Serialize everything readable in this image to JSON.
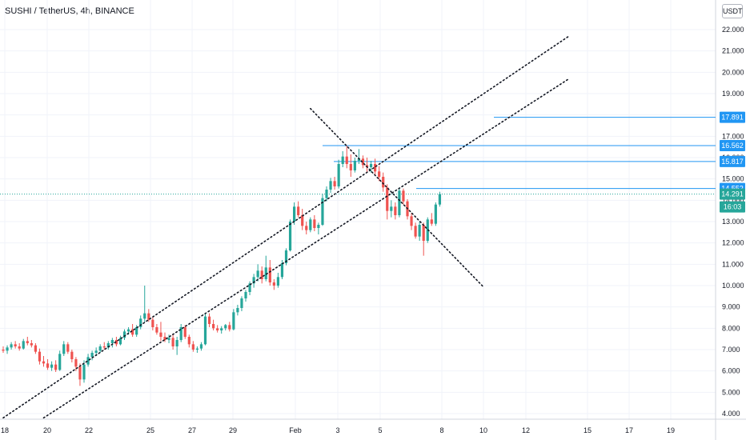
{
  "header": {
    "symbol_title": "SUSHI / TetherUS, 4h, BINANCE",
    "currency": "USDT"
  },
  "chart_data": {
    "type": "candlestick",
    "y_ticks": [
      "4.000",
      "5.000",
      "6.000",
      "7.000",
      "8.000",
      "9.000",
      "10.000",
      "11.000",
      "12.000",
      "13.000",
      "14.000",
      "15.000",
      "16.000",
      "17.000",
      "18.000",
      "19.000",
      "20.000",
      "21.000",
      "22.000"
    ],
    "ylim": [
      3.7,
      22.6
    ],
    "x_ticks": [
      "18",
      "20",
      "22",
      "25",
      "27",
      "29",
      "Feb",
      "3",
      "5",
      "8",
      "10",
      "12",
      "15",
      "17",
      "19"
    ],
    "horizontal_levels": [
      {
        "value": 17.891,
        "label": "17.891",
        "color": "#2196f3"
      },
      {
        "value": 16.562,
        "label": "16.562",
        "color": "#2196f3"
      },
      {
        "value": 15.817,
        "label": "15.817",
        "color": "#2196f3"
      },
      {
        "value": 14.552,
        "label": "14.552",
        "color": "#2196f3"
      }
    ],
    "current_price": {
      "value": 14.291,
      "label": "14.291",
      "countdown": "16:03",
      "color": "#26a69a"
    },
    "trendlines": [
      {
        "style": "dotted",
        "from": [
          0,
          3.8
        ],
        "to": [
          140,
          21.7
        ]
      },
      {
        "style": "dotted",
        "from": [
          10,
          3.8
        ],
        "to": [
          140,
          19.7
        ]
      },
      {
        "style": "dotted",
        "from": [
          76,
          18.3
        ],
        "to": [
          119,
          9.9
        ]
      }
    ],
    "candles": [
      {
        "o": 7.0,
        "h": 7.15,
        "l": 6.85,
        "c": 6.95
      },
      {
        "o": 6.95,
        "h": 7.2,
        "l": 6.8,
        "c": 7.1
      },
      {
        "o": 7.1,
        "h": 7.35,
        "l": 7.0,
        "c": 7.25
      },
      {
        "o": 7.25,
        "h": 7.4,
        "l": 7.05,
        "c": 7.15
      },
      {
        "o": 7.15,
        "h": 7.3,
        "l": 6.95,
        "c": 7.05
      },
      {
        "o": 7.05,
        "h": 7.5,
        "l": 7.0,
        "c": 7.4
      },
      {
        "o": 7.4,
        "h": 7.6,
        "l": 7.2,
        "c": 7.3
      },
      {
        "o": 7.3,
        "h": 7.45,
        "l": 7.1,
        "c": 7.2
      },
      {
        "o": 7.2,
        "h": 7.3,
        "l": 6.8,
        "c": 6.9
      },
      {
        "o": 6.9,
        "h": 7.05,
        "l": 6.3,
        "c": 6.45
      },
      {
        "o": 6.45,
        "h": 6.7,
        "l": 6.2,
        "c": 6.35
      },
      {
        "o": 6.35,
        "h": 6.55,
        "l": 6.05,
        "c": 6.15
      },
      {
        "o": 6.15,
        "h": 6.45,
        "l": 6.0,
        "c": 6.3
      },
      {
        "o": 6.3,
        "h": 6.5,
        "l": 5.95,
        "c": 6.05
      },
      {
        "o": 6.05,
        "h": 6.95,
        "l": 6.0,
        "c": 6.8
      },
      {
        "o": 6.8,
        "h": 7.4,
        "l": 6.7,
        "c": 7.25
      },
      {
        "o": 7.25,
        "h": 7.35,
        "l": 6.8,
        "c": 6.9
      },
      {
        "o": 6.9,
        "h": 7.0,
        "l": 6.4,
        "c": 6.55
      },
      {
        "o": 6.55,
        "h": 6.65,
        "l": 6.0,
        "c": 6.2
      },
      {
        "o": 6.2,
        "h": 6.35,
        "l": 5.3,
        "c": 5.6
      },
      {
        "o": 5.6,
        "h": 6.5,
        "l": 5.45,
        "c": 6.3
      },
      {
        "o": 6.3,
        "h": 6.8,
        "l": 6.2,
        "c": 6.65
      },
      {
        "o": 6.65,
        "h": 6.95,
        "l": 6.5,
        "c": 6.85
      },
      {
        "o": 6.85,
        "h": 7.1,
        "l": 6.7,
        "c": 6.95
      },
      {
        "o": 6.95,
        "h": 7.25,
        "l": 6.85,
        "c": 7.15
      },
      {
        "o": 7.15,
        "h": 7.35,
        "l": 7.0,
        "c": 7.1
      },
      {
        "o": 7.1,
        "h": 7.4,
        "l": 7.0,
        "c": 7.3
      },
      {
        "o": 7.3,
        "h": 7.55,
        "l": 7.1,
        "c": 7.45
      },
      {
        "o": 7.45,
        "h": 7.6,
        "l": 7.15,
        "c": 7.25
      },
      {
        "o": 7.25,
        "h": 7.65,
        "l": 7.2,
        "c": 7.55
      },
      {
        "o": 7.55,
        "h": 7.95,
        "l": 7.45,
        "c": 7.85
      },
      {
        "o": 7.85,
        "h": 8.05,
        "l": 7.7,
        "c": 7.95
      },
      {
        "o": 7.95,
        "h": 8.2,
        "l": 7.6,
        "c": 7.7
      },
      {
        "o": 7.7,
        "h": 8.15,
        "l": 7.6,
        "c": 8.05
      },
      {
        "o": 8.05,
        "h": 8.6,
        "l": 7.95,
        "c": 8.45
      },
      {
        "o": 8.45,
        "h": 10.0,
        "l": 8.3,
        "c": 8.7
      },
      {
        "o": 8.7,
        "h": 8.9,
        "l": 8.3,
        "c": 8.4
      },
      {
        "o": 8.4,
        "h": 8.55,
        "l": 7.9,
        "c": 8.05
      },
      {
        "o": 8.05,
        "h": 8.2,
        "l": 7.7,
        "c": 7.8
      },
      {
        "o": 7.8,
        "h": 8.3,
        "l": 7.4,
        "c": 7.6
      },
      {
        "o": 7.6,
        "h": 7.8,
        "l": 7.35,
        "c": 7.45
      },
      {
        "o": 7.45,
        "h": 7.7,
        "l": 7.3,
        "c": 7.55
      },
      {
        "o": 7.55,
        "h": 7.75,
        "l": 7.0,
        "c": 7.15
      },
      {
        "o": 7.15,
        "h": 7.6,
        "l": 6.75,
        "c": 7.45
      },
      {
        "o": 7.45,
        "h": 8.2,
        "l": 7.35,
        "c": 8.05
      },
      {
        "o": 8.05,
        "h": 8.15,
        "l": 7.5,
        "c": 7.6
      },
      {
        "o": 7.6,
        "h": 7.7,
        "l": 7.1,
        "c": 7.25
      },
      {
        "o": 7.25,
        "h": 7.4,
        "l": 6.9,
        "c": 7.0
      },
      {
        "o": 7.0,
        "h": 7.15,
        "l": 6.85,
        "c": 7.05
      },
      {
        "o": 7.05,
        "h": 7.35,
        "l": 6.95,
        "c": 7.25
      },
      {
        "o": 7.25,
        "h": 8.7,
        "l": 7.2,
        "c": 8.55
      },
      {
        "o": 8.55,
        "h": 8.7,
        "l": 8.05,
        "c": 8.2
      },
      {
        "o": 8.2,
        "h": 8.4,
        "l": 7.9,
        "c": 8.0
      },
      {
        "o": 8.0,
        "h": 8.15,
        "l": 7.8,
        "c": 7.9
      },
      {
        "o": 7.9,
        "h": 8.1,
        "l": 7.75,
        "c": 8.0
      },
      {
        "o": 8.0,
        "h": 8.2,
        "l": 7.9,
        "c": 8.15
      },
      {
        "o": 8.15,
        "h": 8.3,
        "l": 7.85,
        "c": 7.95
      },
      {
        "o": 7.95,
        "h": 8.9,
        "l": 7.9,
        "c": 8.75
      },
      {
        "o": 8.75,
        "h": 9.1,
        "l": 8.6,
        "c": 8.95
      },
      {
        "o": 8.95,
        "h": 9.5,
        "l": 8.8,
        "c": 9.4
      },
      {
        "o": 9.4,
        "h": 9.8,
        "l": 9.25,
        "c": 9.7
      },
      {
        "o": 9.7,
        "h": 10.2,
        "l": 9.55,
        "c": 10.1
      },
      {
        "o": 10.1,
        "h": 10.55,
        "l": 9.9,
        "c": 10.4
      },
      {
        "o": 10.4,
        "h": 11.0,
        "l": 10.2,
        "c": 10.7
      },
      {
        "o": 10.7,
        "h": 10.9,
        "l": 10.1,
        "c": 10.3
      },
      {
        "o": 10.3,
        "h": 11.4,
        "l": 10.2,
        "c": 10.85
      },
      {
        "o": 10.85,
        "h": 11.2,
        "l": 10.0,
        "c": 10.15
      },
      {
        "o": 10.15,
        "h": 10.3,
        "l": 9.8,
        "c": 10.0
      },
      {
        "o": 10.0,
        "h": 10.6,
        "l": 9.9,
        "c": 10.4
      },
      {
        "o": 10.4,
        "h": 11.2,
        "l": 10.3,
        "c": 11.05
      },
      {
        "o": 11.05,
        "h": 11.75,
        "l": 10.95,
        "c": 11.65
      },
      {
        "o": 11.65,
        "h": 13.1,
        "l": 11.6,
        "c": 13.0
      },
      {
        "o": 13.0,
        "h": 13.9,
        "l": 12.85,
        "c": 13.7
      },
      {
        "o": 13.7,
        "h": 13.95,
        "l": 13.2,
        "c": 13.3
      },
      {
        "o": 13.3,
        "h": 13.6,
        "l": 12.6,
        "c": 12.8
      },
      {
        "o": 12.8,
        "h": 13.0,
        "l": 12.4,
        "c": 12.6
      },
      {
        "o": 12.6,
        "h": 13.2,
        "l": 12.5,
        "c": 13.1
      },
      {
        "o": 13.1,
        "h": 13.3,
        "l": 12.55,
        "c": 12.7
      },
      {
        "o": 12.7,
        "h": 12.95,
        "l": 12.4,
        "c": 12.85
      },
      {
        "o": 12.85,
        "h": 14.3,
        "l": 12.8,
        "c": 14.1
      },
      {
        "o": 14.1,
        "h": 14.65,
        "l": 13.95,
        "c": 14.5
      },
      {
        "o": 14.5,
        "h": 15.05,
        "l": 14.35,
        "c": 14.9
      },
      {
        "o": 14.9,
        "h": 15.1,
        "l": 14.5,
        "c": 14.65
      },
      {
        "o": 14.65,
        "h": 15.9,
        "l": 14.55,
        "c": 15.7
      },
      {
        "o": 15.7,
        "h": 16.3,
        "l": 15.55,
        "c": 16.05
      },
      {
        "o": 16.05,
        "h": 16.55,
        "l": 15.5,
        "c": 15.7
      },
      {
        "o": 15.7,
        "h": 16.15,
        "l": 15.1,
        "c": 15.4
      },
      {
        "o": 15.4,
        "h": 16.0,
        "l": 15.3,
        "c": 15.85
      },
      {
        "o": 15.85,
        "h": 16.4,
        "l": 15.7,
        "c": 15.95
      },
      {
        "o": 15.95,
        "h": 16.1,
        "l": 15.5,
        "c": 15.65
      },
      {
        "o": 15.65,
        "h": 16.0,
        "l": 15.3,
        "c": 15.55
      },
      {
        "o": 15.55,
        "h": 15.85,
        "l": 15.3,
        "c": 15.7
      },
      {
        "o": 15.7,
        "h": 15.95,
        "l": 15.2,
        "c": 15.35
      },
      {
        "o": 15.35,
        "h": 15.6,
        "l": 14.9,
        "c": 15.1
      },
      {
        "o": 15.1,
        "h": 15.3,
        "l": 14.4,
        "c": 14.6
      },
      {
        "o": 14.6,
        "h": 14.75,
        "l": 13.1,
        "c": 13.5
      },
      {
        "o": 13.5,
        "h": 14.0,
        "l": 13.2,
        "c": 13.7
      },
      {
        "o": 13.7,
        "h": 13.9,
        "l": 13.1,
        "c": 13.3
      },
      {
        "o": 13.3,
        "h": 14.6,
        "l": 13.2,
        "c": 14.45
      },
      {
        "o": 14.45,
        "h": 14.55,
        "l": 13.8,
        "c": 13.95
      },
      {
        "o": 13.95,
        "h": 14.05,
        "l": 13.1,
        "c": 13.25
      },
      {
        "o": 13.25,
        "h": 13.4,
        "l": 12.6,
        "c": 12.8
      },
      {
        "o": 12.8,
        "h": 12.95,
        "l": 12.2,
        "c": 12.3
      },
      {
        "o": 12.3,
        "h": 13.0,
        "l": 12.1,
        "c": 12.85
      },
      {
        "o": 12.85,
        "h": 12.95,
        "l": 11.4,
        "c": 12.1
      },
      {
        "o": 12.1,
        "h": 13.2,
        "l": 12.0,
        "c": 13.1
      },
      {
        "o": 13.1,
        "h": 13.4,
        "l": 12.8,
        "c": 12.9
      },
      {
        "o": 12.9,
        "h": 13.9,
        "l": 12.8,
        "c": 13.8
      },
      {
        "o": 13.8,
        "h": 14.4,
        "l": 13.7,
        "c": 14.29
      }
    ]
  }
}
